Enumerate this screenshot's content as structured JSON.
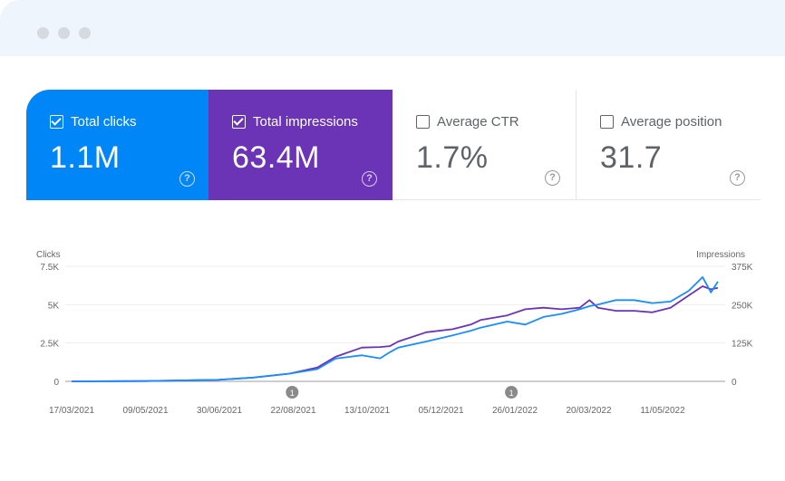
{
  "window": {
    "dots": 3
  },
  "metrics": [
    {
      "label": "Total clicks",
      "value": "1.1M",
      "checked": true,
      "color": "#0186f8"
    },
    {
      "label": "Total impressions",
      "value": "63.4M",
      "checked": true,
      "color": "#6b33b5"
    },
    {
      "label": "Average CTR",
      "value": "1.7%",
      "checked": false
    },
    {
      "label": "Average position",
      "value": "31.7",
      "checked": false
    }
  ],
  "help_icon": "?",
  "chart_data": {
    "type": "line",
    "left_axis": {
      "label": "Clicks",
      "ticks": [
        "0",
        "2.5K",
        "5K",
        "7.5K"
      ],
      "range": [
        0,
        7500
      ]
    },
    "right_axis": {
      "label": "Impressions",
      "ticks": [
        "0",
        "125K",
        "250K",
        "375K"
      ],
      "range": [
        0,
        375000
      ]
    },
    "x_ticks": [
      "17/03/2021",
      "09/05/2021",
      "30/06/2021",
      "22/08/2021",
      "13/10/2021",
      "05/12/2021",
      "26/01/2022",
      "20/03/2022",
      "11/05/2022"
    ],
    "grid": true,
    "annotations": [
      {
        "date": "2021-08-22",
        "label": "1"
      },
      {
        "date": "2022-01-26",
        "label": "1"
      }
    ],
    "dates": [
      "2021-03-17",
      "2021-05-09",
      "2021-06-30",
      "2021-07-25",
      "2021-08-20",
      "2021-09-09",
      "2021-09-22",
      "2021-10-11",
      "2021-10-24",
      "2021-10-31",
      "2021-11-06",
      "2021-11-26",
      "2021-12-15",
      "2021-12-28",
      "2022-01-04",
      "2022-01-23",
      "2022-02-05",
      "2022-02-18",
      "2022-03-03",
      "2022-03-16",
      "2022-03-23",
      "2022-03-29",
      "2022-04-11",
      "2022-04-24",
      "2022-05-07",
      "2022-05-20",
      "2022-06-02",
      "2022-06-12",
      "2022-06-18",
      "2022-06-23"
    ],
    "series": [
      {
        "axis": "left",
        "color": "#1a8cff",
        "values": [
          0,
          20,
          100,
          250,
          500,
          800,
          1480,
          1700,
          1500,
          1900,
          2200,
          2600,
          3000,
          3300,
          3500,
          3900,
          3700,
          4200,
          4400,
          4700,
          4900,
          5000,
          5300,
          5300,
          5100,
          5200,
          5900,
          6800,
          5800,
          6500
        ]
      },
      {
        "axis": "right",
        "color": "#6b33b5",
        "values": [
          0,
          1000,
          5000,
          12000,
          25000,
          45000,
          80000,
          110000,
          112000,
          115000,
          130000,
          160000,
          170000,
          185000,
          200000,
          215000,
          235000,
          240000,
          235000,
          240000,
          265000,
          240000,
          230000,
          230000,
          225000,
          240000,
          280000,
          310000,
          300000,
          305000
        ]
      }
    ]
  }
}
